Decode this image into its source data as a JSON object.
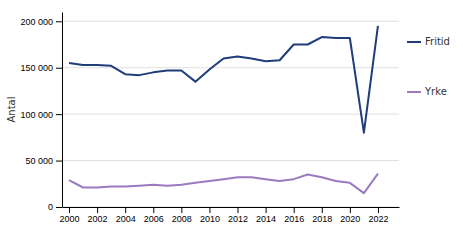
{
  "chart_data": {
    "type": "line",
    "ylabel": "Antal",
    "x": [
      2000,
      2001,
      2002,
      2003,
      2004,
      2005,
      2006,
      2007,
      2008,
      2009,
      2010,
      2011,
      2012,
      2013,
      2014,
      2015,
      2016,
      2017,
      2018,
      2019,
      2020,
      2021,
      2022
    ],
    "series": [
      {
        "name": "Fritid",
        "color": "#1f3d7a",
        "values": [
          155000,
          153000,
          153000,
          152000,
          143000,
          142000,
          145000,
          147000,
          147000,
          135000,
          148000,
          160000,
          162000,
          160000,
          157000,
          158000,
          175000,
          175000,
          183000,
          182000,
          182000,
          80000,
          195000
        ]
      },
      {
        "name": "Yrke",
        "color": "#9b7bc0",
        "values": [
          29000,
          21000,
          21000,
          22000,
          22000,
          23000,
          24000,
          23000,
          24000,
          26000,
          28000,
          30000,
          32000,
          32000,
          30000,
          28000,
          30000,
          35000,
          32000,
          28000,
          26000,
          15000,
          36000
        ]
      }
    ],
    "xlim": [
      1999.5,
      2023.5
    ],
    "xticks": [
      2000,
      2002,
      2004,
      2006,
      2008,
      2010,
      2012,
      2014,
      2016,
      2018,
      2020,
      2022
    ],
    "ylim": [
      0,
      210000
    ],
    "yticks": [
      0,
      {
        "value": 50000,
        "label": "50 000"
      },
      {
        "value": 100000,
        "label": "100 000"
      },
      {
        "value": 150000,
        "label": "150 000"
      },
      {
        "value": 200000,
        "label": "200 000"
      }
    ],
    "grid": true,
    "legend": "right"
  }
}
